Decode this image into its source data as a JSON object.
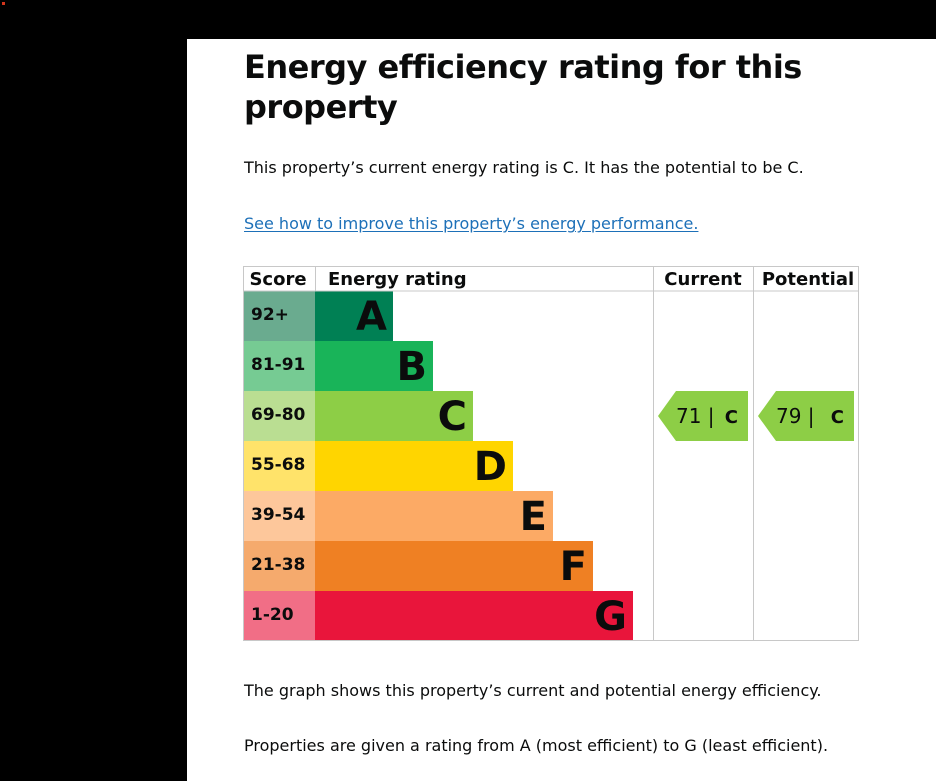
{
  "heading": "Energy efficiency rating for this property",
  "current_rating_text": "This property’s current energy rating is C. It has the potential to be C.",
  "improve_link": "See how to improve this property’s energy performance.",
  "graph_description": "The graph shows this property’s current and potential energy efficiency.",
  "rating_scale_text": "Properties are given a rating from A (most efficient) to G (least efficient).",
  "chart_data": {
    "type": "table",
    "columns": [
      "Score",
      "Energy rating",
      "Current",
      "Potential"
    ],
    "bands": [
      {
        "score": "92+",
        "letter": "A",
        "color": "#008054",
        "score_bg": "#6aab8f"
      },
      {
        "score": "81-91",
        "letter": "B",
        "color": "#19b459",
        "score_bg": "#76cb93"
      },
      {
        "score": "69-80",
        "letter": "C",
        "color": "#8dce46",
        "score_bg": "#bade92"
      },
      {
        "score": "55-68",
        "letter": "D",
        "color": "#ffd500",
        "score_bg": "#ffe36a"
      },
      {
        "score": "39-54",
        "letter": "E",
        "color": "#fcaa65",
        "score_bg": "#fdc79b"
      },
      {
        "score": "21-38",
        "letter": "F",
        "color": "#ef8023",
        "score_bg": "#f5aa6d"
      },
      {
        "score": "1-20",
        "letter": "G",
        "color": "#e9153b",
        "score_bg": "#f16e86"
      }
    ],
    "current": {
      "value": 71,
      "letter": "C",
      "color": "#8dce46"
    },
    "potential": {
      "value": 79,
      "letter": "C",
      "color": "#8dce46"
    }
  }
}
